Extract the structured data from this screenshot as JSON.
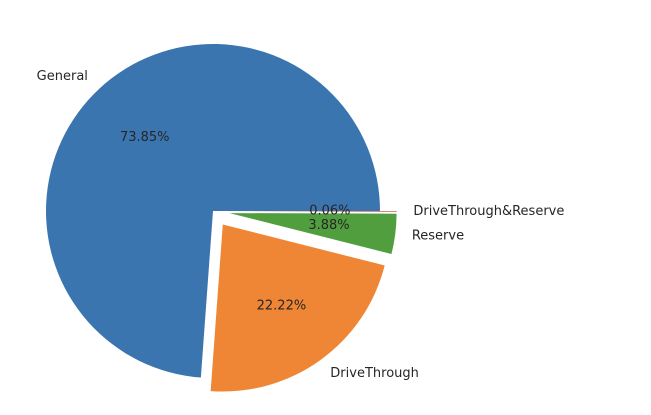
{
  "chart_data": {
    "type": "pie",
    "title": "",
    "series": [
      {
        "label": "General",
        "value": 73.85,
        "pct_label": "73.85%",
        "color": "#3a75af",
        "exploded": false
      },
      {
        "label": "DriveThrough",
        "value": 22.22,
        "pct_label": "22.22%",
        "color": "#ef8636",
        "exploded": true
      },
      {
        "label": "Reserve",
        "value": 3.88,
        "pct_label": "3.88%",
        "color": "#519e3e",
        "exploded": true
      },
      {
        "label": "DriveThrough&Reserve",
        "value": 0.06,
        "pct_label": "0.06%",
        "color": "#c53a32",
        "exploded": true
      }
    ],
    "start_angle_deg": 0,
    "direction": "counterclockwise",
    "legend": "none",
    "label_mode": "outside labels with inside percentages"
  }
}
